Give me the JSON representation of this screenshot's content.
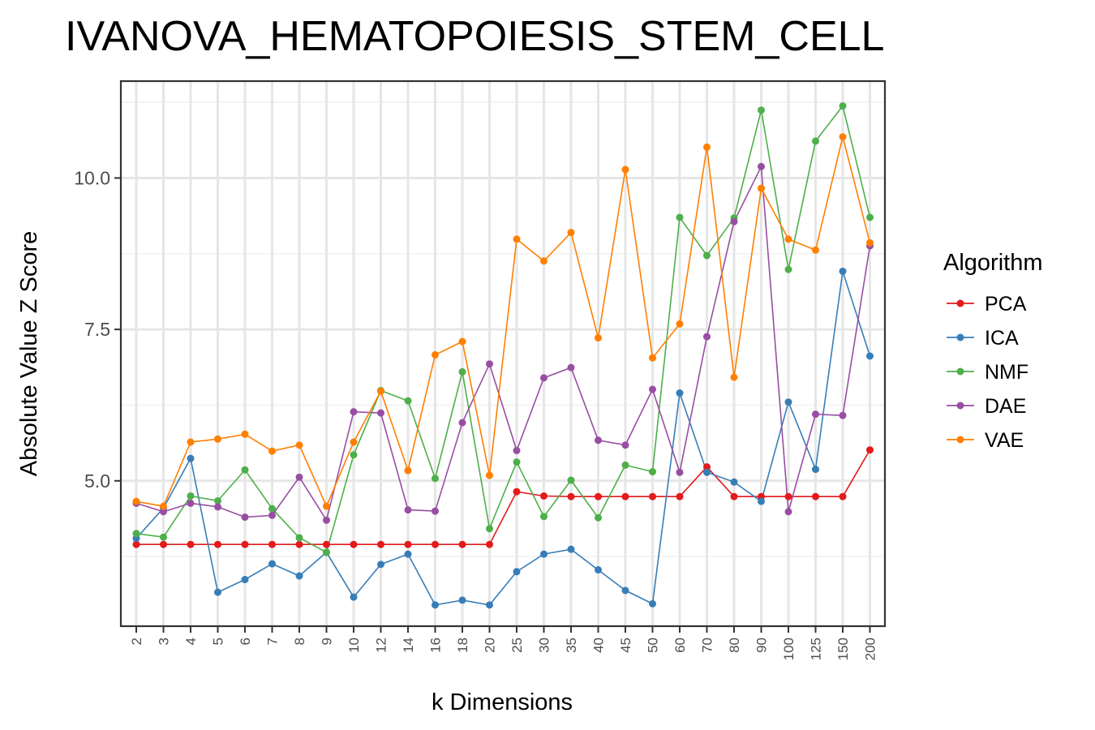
{
  "chart_data": {
    "type": "line",
    "title": "IVANOVA_HEMATOPOIESIS_STEM_CELL",
    "xlabel": "k Dimensions",
    "ylabel": "Absolute Value Z Score",
    "categories": [
      "2",
      "3",
      "4",
      "5",
      "6",
      "7",
      "8",
      "9",
      "10",
      "12",
      "14",
      "16",
      "18",
      "20",
      "25",
      "30",
      "35",
      "40",
      "45",
      "50",
      "60",
      "70",
      "80",
      "90",
      "100",
      "125",
      "150",
      "200"
    ],
    "yticks": [
      5.0,
      7.5,
      10.0
    ],
    "ytick_labels": [
      "5.0",
      "7.5",
      "10.0"
    ],
    "ylim": [
      2.6,
      11.6
    ],
    "grid": true,
    "legend": {
      "title": "Algorithm",
      "position": "right"
    },
    "series": [
      {
        "name": "PCA",
        "color": "#e41a1c",
        "values": [
          3.95,
          3.95,
          3.95,
          3.95,
          3.95,
          3.95,
          3.95,
          3.95,
          3.95,
          3.95,
          3.95,
          3.95,
          3.95,
          3.95,
          4.82,
          4.75,
          4.74,
          4.74,
          4.74,
          4.74,
          4.74,
          5.23,
          4.74,
          4.74,
          4.74,
          4.74,
          4.74,
          5.51
        ]
      },
      {
        "name": "ICA",
        "color": "#377eb8",
        "values": [
          4.05,
          4.55,
          5.37,
          3.16,
          3.37,
          3.63,
          3.43,
          3.82,
          3.08,
          3.62,
          3.79,
          2.95,
          3.03,
          2.95,
          3.5,
          3.79,
          3.87,
          3.53,
          3.19,
          2.97,
          6.45,
          5.14,
          4.98,
          4.66,
          6.3,
          5.19,
          8.46,
          7.06
        ]
      },
      {
        "name": "NMF",
        "color": "#4daf4a",
        "values": [
          4.13,
          4.07,
          4.75,
          4.67,
          5.18,
          4.54,
          4.06,
          3.82,
          5.43,
          6.49,
          6.32,
          5.04,
          6.8,
          4.21,
          5.31,
          4.41,
          5.01,
          4.39,
          5.26,
          5.15,
          9.35,
          8.72,
          9.34,
          11.12,
          8.49,
          10.61,
          11.19,
          9.35
        ]
      },
      {
        "name": "DAE",
        "color": "#984ea3",
        "values": [
          4.63,
          4.49,
          4.63,
          4.57,
          4.4,
          4.43,
          5.06,
          4.35,
          6.14,
          6.12,
          4.52,
          4.5,
          5.96,
          6.93,
          5.5,
          6.7,
          6.87,
          5.67,
          5.59,
          6.51,
          5.14,
          7.38,
          9.28,
          10.19,
          4.49,
          6.1,
          6.08,
          8.88
        ]
      },
      {
        "name": "VAE",
        "color": "#ff7f00",
        "values": [
          4.66,
          4.58,
          5.64,
          5.69,
          5.77,
          5.49,
          5.59,
          4.58,
          5.64,
          6.48,
          5.17,
          7.08,
          7.3,
          5.09,
          8.99,
          8.63,
          9.1,
          7.36,
          10.14,
          7.03,
          7.59,
          10.51,
          6.71,
          9.83,
          8.99,
          8.81,
          10.68,
          8.93
        ]
      }
    ]
  }
}
